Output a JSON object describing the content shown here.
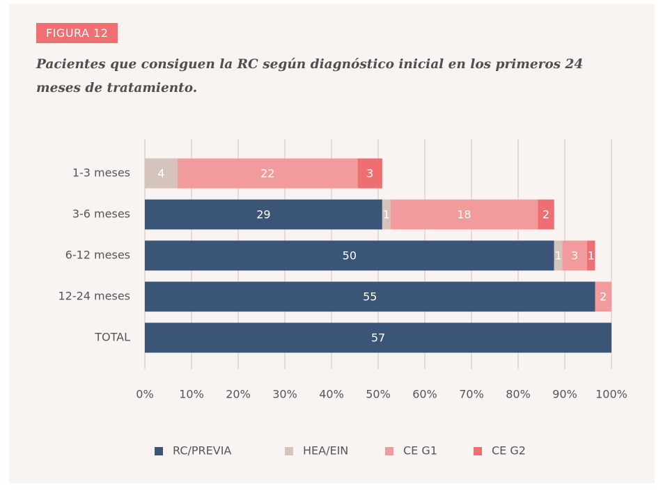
{
  "chart_data": {
    "type": "stacked-bar-horizontal",
    "label": "FIGURA 12",
    "title": "Pacientes que consiguen la RC según diagnóstico inicial en los primeros 24 meses de tratamiento.",
    "categories": [
      "1-3 meses",
      "3-6 meses",
      "6-12 meses",
      "12-24 meses",
      "TOTAL"
    ],
    "series": [
      {
        "name": "RC/PREVIA",
        "color": "#3b5577",
        "values": [
          null,
          29,
          50,
          55,
          57
        ]
      },
      {
        "name": "HEA/EIN",
        "color": "#d5c4bc",
        "values": [
          4,
          1,
          1,
          null,
          null
        ]
      },
      {
        "name": "CE G1",
        "color": "#f19b9d",
        "values": [
          22,
          18,
          3,
          2,
          null
        ]
      },
      {
        "name": "CE G2",
        "color": "#ee6f72",
        "values": [
          3,
          2,
          1,
          null,
          null
        ]
      }
    ],
    "xlim": [
      0,
      57
    ],
    "xticks": [
      {
        "value": 0,
        "label": "0%"
      },
      {
        "value": 5.7,
        "label": "10%"
      },
      {
        "value": 11.4,
        "label": "20%"
      },
      {
        "value": 17.1,
        "label": "30%"
      },
      {
        "value": 22.8,
        "label": "40%"
      },
      {
        "value": 28.5,
        "label": "50%"
      },
      {
        "value": 34.2,
        "label": "60%"
      },
      {
        "value": 39.9,
        "label": "70%"
      },
      {
        "value": 45.6,
        "label": "80%"
      },
      {
        "value": 51.3,
        "label": "90%"
      },
      {
        "value": 57,
        "label": "100%"
      }
    ],
    "grid": true,
    "legend": "bottom"
  }
}
